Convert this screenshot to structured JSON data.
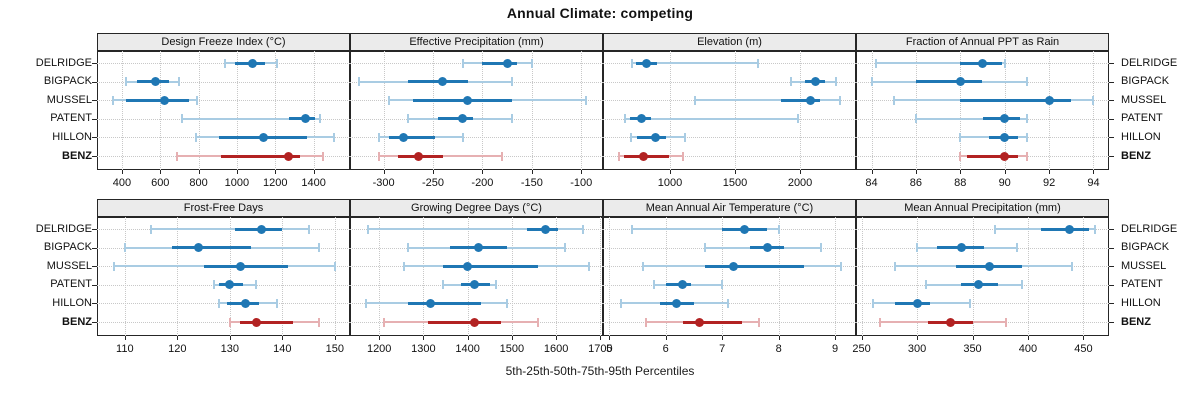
{
  "title": "Annual Climate: competing",
  "caption": "5th-25th-50th-75th-95th Percentiles",
  "rows": [
    "DELRIDGE",
    "BIGPACK",
    "MUSSEL",
    "PATENT",
    "HILLON",
    "BENZ"
  ],
  "highlight_row": "BENZ",
  "colors": {
    "series_blue": "#1f77b4",
    "series_blue_light": "#a9cce3",
    "highlight_red": "#b22222",
    "highlight_red_light": "#e6b0b2",
    "strip_background": "#ebebeb",
    "panel_border": "#262626",
    "gridline": "#c8c8c8"
  },
  "chart_data": {
    "type": "dot-whisker-trellis",
    "percentiles": [
      5,
      25,
      50,
      75,
      95
    ],
    "grid": "dotted",
    "rows": [
      "DELRIDGE",
      "BIGPACK",
      "MUSSEL",
      "PATENT",
      "HILLON",
      "BENZ"
    ],
    "panels": [
      {
        "title": "Design Freeze Index (°C)",
        "grid_row": 0,
        "grid_col": 0,
        "ticks": [
          400,
          600,
          800,
          1000,
          1200,
          1400
        ],
        "xlim": [
          270,
          1590
        ],
        "series": [
          {
            "name": "DELRIDGE",
            "p": [
              940,
              990,
              1080,
              1145,
              1210
            ]
          },
          {
            "name": "BIGPACK",
            "p": [
              420,
              480,
              577,
              645,
              700
            ]
          },
          {
            "name": "MUSSEL",
            "p": [
              355,
              420,
              620,
              750,
              790
            ]
          },
          {
            "name": "PATENT",
            "p": [
              715,
              1270,
              1360,
              1405,
              1435
            ]
          },
          {
            "name": "HILLON",
            "p": [
              785,
              905,
              1140,
              1365,
              1505
            ]
          },
          {
            "name": "BENZ",
            "p": [
              685,
              915,
              1270,
              1330,
              1450
            ]
          }
        ]
      },
      {
        "title": "Effective Precipitation (mm)",
        "grid_row": 0,
        "grid_col": 1,
        "ticks": [
          -300,
          -250,
          -200,
          -150,
          -100
        ],
        "xlim": [
          -334,
          -78
        ],
        "series": [
          {
            "name": "DELRIDGE",
            "p": [
              -220,
              -200,
              -175,
              -165,
              -150
            ]
          },
          {
            "name": "BIGPACK",
            "p": [
              -325,
              -275,
              -240,
              -215,
              -170
            ]
          },
          {
            "name": "MUSSEL",
            "p": [
              -295,
              -270,
              -215,
              -170,
              -95
            ]
          },
          {
            "name": "PATENT",
            "p": [
              -275,
              -245,
              -220,
              -210,
              -170
            ]
          },
          {
            "name": "HILLON",
            "p": [
              -305,
              -295,
              -280,
              -248,
              -220
            ]
          },
          {
            "name": "BENZ",
            "p": [
              -305,
              -285,
              -265,
              -240,
              -180
            ]
          }
        ]
      },
      {
        "title": "Elevation (m)",
        "grid_row": 0,
        "grid_col": 2,
        "ticks": [
          1000,
          1500,
          2000
        ],
        "xlim": [
          485,
          2430
        ],
        "series": [
          {
            "name": "DELRIDGE",
            "p": [
              710,
              740,
              820,
              900,
              1680
            ]
          },
          {
            "name": "BIGPACK",
            "p": [
              1930,
              2040,
              2120,
              2190,
              2280
            ]
          },
          {
            "name": "MUSSEL",
            "p": [
              1190,
              1850,
              2080,
              2150,
              2310
            ]
          },
          {
            "name": "PATENT",
            "p": [
              655,
              690,
              780,
              855,
              1985
            ]
          },
          {
            "name": "HILLON",
            "p": [
              700,
              745,
              890,
              970,
              1115
            ]
          },
          {
            "name": "BENZ",
            "p": [
              610,
              650,
              800,
              990,
              1100
            ]
          }
        ]
      },
      {
        "title": "Fraction of Annual PPT as Rain",
        "grid_row": 0,
        "grid_col": 3,
        "ticks": [
          84,
          86,
          88,
          90,
          92,
          94
        ],
        "xlim": [
          83.3,
          94.7
        ],
        "series": [
          {
            "name": "DELRIDGE",
            "p": [
              84.2,
              88,
              89,
              89.9,
              90
            ]
          },
          {
            "name": "BIGPACK",
            "p": [
              84,
              86,
              88,
              89,
              91
            ]
          },
          {
            "name": "MUSSEL",
            "p": [
              85,
              88,
              92,
              93,
              94
            ]
          },
          {
            "name": "PATENT",
            "p": [
              86,
              89,
              90,
              90.7,
              91
            ]
          },
          {
            "name": "HILLON",
            "p": [
              88,
              89.3,
              90,
              90.6,
              91
            ]
          },
          {
            "name": "BENZ",
            "p": [
              88,
              88.3,
              90,
              90.6,
              91
            ]
          }
        ]
      },
      {
        "title": "Frost-Free Days",
        "grid_row": 1,
        "grid_col": 0,
        "ticks": [
          110,
          120,
          130,
          140,
          150
        ],
        "xlim": [
          104.7,
          152.9
        ],
        "series": [
          {
            "name": "DELRIDGE",
            "p": [
              115,
              131,
              136,
              140,
              145
            ]
          },
          {
            "name": "BIGPACK",
            "p": [
              110,
              119,
              124,
              134,
              147
            ]
          },
          {
            "name": "MUSSEL",
            "p": [
              108,
              125,
              132,
              141,
              150
            ]
          },
          {
            "name": "PATENT",
            "p": [
              127,
              128,
              130,
              132.5,
              135
            ]
          },
          {
            "name": "HILLON",
            "p": [
              128,
              129.5,
              133,
              135.5,
              139
            ]
          },
          {
            "name": "BENZ",
            "p": [
              130,
              132,
              135,
              142,
              147
            ]
          }
        ]
      },
      {
        "title": "Growing Degree Days (°C)",
        "grid_row": 1,
        "grid_col": 1,
        "ticks": [
          1200,
          1300,
          1400,
          1500,
          1600,
          1700
        ],
        "xlim": [
          1134,
          1706
        ],
        "series": [
          {
            "name": "DELRIDGE",
            "p": [
              1175,
              1535,
              1575,
              1605,
              1660
            ]
          },
          {
            "name": "BIGPACK",
            "p": [
              1265,
              1360,
              1425,
              1490,
              1620
            ]
          },
          {
            "name": "MUSSEL",
            "p": [
              1255,
              1345,
              1400,
              1560,
              1675
            ]
          },
          {
            "name": "PATENT",
            "p": [
              1345,
              1385,
              1415,
              1450,
              1465
            ]
          },
          {
            "name": "HILLON",
            "p": [
              1170,
              1265,
              1315,
              1430,
              1490
            ]
          },
          {
            "name": "BENZ",
            "p": [
              1210,
              1310,
              1415,
              1475,
              1560
            ]
          }
        ]
      },
      {
        "title": "Mean Annual Air Temperature (°C)",
        "grid_row": 1,
        "grid_col": 2,
        "ticks": [
          5,
          6,
          7,
          8,
          9
        ],
        "xlim": [
          4.89,
          9.37
        ],
        "series": [
          {
            "name": "DELRIDGE",
            "p": [
              5.4,
              7.0,
              7.4,
              7.8,
              8.0
            ]
          },
          {
            "name": "BIGPACK",
            "p": [
              6.7,
              7.5,
              7.8,
              8.1,
              8.75
            ]
          },
          {
            "name": "MUSSEL",
            "p": [
              5.6,
              6.7,
              7.2,
              8.45,
              9.1
            ]
          },
          {
            "name": "PATENT",
            "p": [
              5.8,
              6.0,
              6.3,
              6.45,
              7.0
            ]
          },
          {
            "name": "HILLON",
            "p": [
              5.2,
              5.9,
              6.2,
              6.5,
              7.1
            ]
          },
          {
            "name": "BENZ",
            "p": [
              5.65,
              6.3,
              6.6,
              7.35,
              7.65
            ]
          }
        ]
      },
      {
        "title": "Mean Annual Precipitation (mm)",
        "grid_row": 1,
        "grid_col": 3,
        "ticks": [
          250,
          300,
          350,
          400,
          450
        ],
        "xlim": [
          245,
          473
        ],
        "series": [
          {
            "name": "DELRIDGE",
            "p": [
              370,
              412,
              437,
              455,
              460
            ]
          },
          {
            "name": "BIGPACK",
            "p": [
              300,
              318,
              340,
              360,
              390
            ]
          },
          {
            "name": "MUSSEL",
            "p": [
              280,
              335,
              365,
              395,
              440
            ]
          },
          {
            "name": "PATENT",
            "p": [
              308,
              340,
              355,
              373,
              395
            ]
          },
          {
            "name": "HILLON",
            "p": [
              260,
              280,
              300,
              312,
              348
            ]
          },
          {
            "name": "BENZ",
            "p": [
              267,
              310,
              330,
              350,
              380
            ]
          }
        ]
      }
    ]
  }
}
